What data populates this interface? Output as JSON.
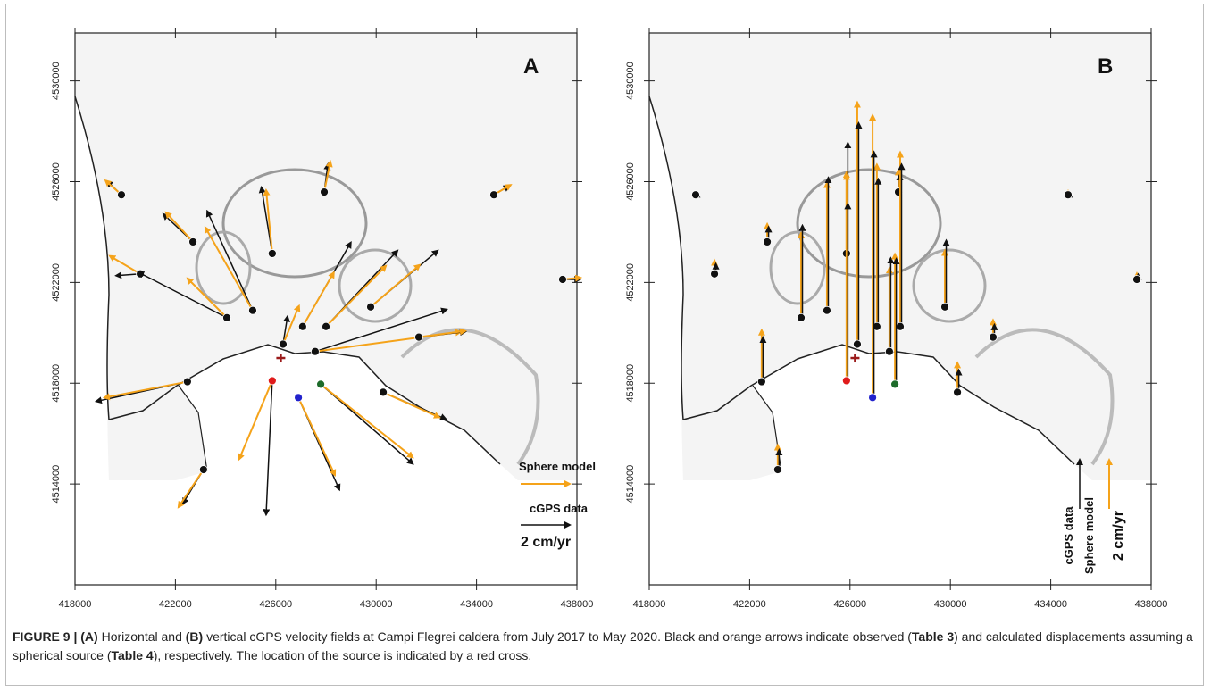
{
  "figure": {
    "panels": [
      {
        "label": "A",
        "mode": "horizontal",
        "legend": {
          "model": "Sphere model",
          "data": "cGPS data",
          "scale": "2 cm/yr"
        }
      },
      {
        "label": "B",
        "mode": "vertical",
        "legend": {
          "model": "Sphere model",
          "data": "cGPS data",
          "scale": "2 cm/yr"
        }
      }
    ],
    "scale_value": 2,
    "xlim": [
      418000,
      438000
    ],
    "ylim": [
      4510000,
      4531900
    ],
    "xticks": [
      418000,
      422000,
      426000,
      430000,
      434000,
      438000
    ],
    "yticks": [
      4514000,
      4518000,
      4522000,
      4526000,
      4530000
    ],
    "observed_color": "#111111",
    "model_color": "#f5a31a",
    "source": {
      "x": 426200,
      "y": 4519000,
      "color": "#9b1b1b"
    },
    "stations": [
      {
        "x": 419850,
        "y": 4525480,
        "obs_h": [
          -0.58,
          0.55
        ],
        "mod_h": [
          -0.65,
          0.58
        ],
        "obs_v": 0.1,
        "mod_v": 0.1,
        "color": "#111111"
      },
      {
        "x": 422700,
        "y": 4523610,
        "obs_h": [
          -1.2,
          1.13
        ],
        "mod_h": [
          -1.1,
          1.2
        ],
        "obs_v": 0.6,
        "mod_v": 0.73,
        "color": "#111111"
      },
      {
        "x": 420600,
        "y": 4522340,
        "obs_h": [
          -0.98,
          -0.07
        ],
        "mod_h": [
          -1.24,
          0.73
        ],
        "obs_v": 0.4,
        "mod_v": 0.55,
        "color": "#111111"
      },
      {
        "x": 424050,
        "y": 4520600,
        "obs_h": [
          -3.6,
          1.85
        ],
        "mod_h": [
          -1.6,
          1.6
        ],
        "obs_v": 3.75,
        "mod_v": 3.45,
        "color": "#111111"
      },
      {
        "x": 425080,
        "y": 4520890,
        "obs_h": [
          -1.85,
          4.04
        ],
        "mod_h": [
          -1.93,
          3.38
        ],
        "obs_v": 5.4,
        "mod_v": 5.2,
        "color": "#111111"
      },
      {
        "x": 425860,
        "y": 4523150,
        "obs_h": [
          -0.44,
          2.69
        ],
        "mod_h": [
          -0.25,
          2.58
        ],
        "obs_v": 4.5,
        "mod_v": 3.3,
        "color": "#111111"
      },
      {
        "x": 427930,
        "y": 4525590,
        "obs_h": [
          0.15,
          1.13
        ],
        "mod_h": [
          0.25,
          1.24
        ],
        "obs_v": 0.7,
        "mod_v": 0.9,
        "color": "#111111"
      },
      {
        "x": 434690,
        "y": 4525480,
        "obs_h": [
          0.62,
          0.36
        ],
        "mod_h": [
          0.69,
          0.4
        ],
        "obs_v": 0.1,
        "mod_v": 0.15,
        "color": "#111111"
      },
      {
        "x": 437430,
        "y": 4522120,
        "obs_h": [
          0.7,
          0
        ],
        "mod_h": [
          0.73,
          0.07
        ],
        "obs_v": 0.2,
        "mod_v": 0.25,
        "color": "#111111"
      },
      {
        "x": 426290,
        "y": 4519550,
        "obs_h": [
          0.18,
          1.13
        ],
        "mod_h": [
          0.65,
          1.56
        ],
        "obs_v": 9,
        "mod_v": 9.85,
        "color": "#111111"
      },
      {
        "x": 427070,
        "y": 4520250,
        "obs_h": [
          1.96,
          3.42
        ],
        "mod_h": [
          1.27,
          2.2
        ],
        "obs_v": 6,
        "mod_v": 6.6,
        "color": "#111111"
      },
      {
        "x": 428000,
        "y": 4520250,
        "obs_h": [
          2.91,
          3.09
        ],
        "mod_h": [
          2.44,
          2.47
        ],
        "obs_v": 6.6,
        "mod_v": 7.1,
        "color": "#111111"
      },
      {
        "x": 427570,
        "y": 4519260,
        "obs_h": [
          5.35,
          1.71
        ],
        "mod_h": [
          5.93,
          0.8
        ],
        "obs_v": 3.8,
        "mod_v": 3.4,
        "color": "#111111"
      },
      {
        "x": 429780,
        "y": 4521030,
        "obs_h": [
          2.73,
          2.29
        ],
        "mod_h": [
          2,
          1.71
        ],
        "obs_v": 2.7,
        "mod_v": 2.3,
        "color": "#111111"
      },
      {
        "x": 431700,
        "y": 4519830,
        "obs_h": [
          1.89,
          0.22
        ],
        "mod_h": [
          1.89,
          0.25
        ],
        "obs_v": 0.5,
        "mod_v": 0.7,
        "color": "#111111"
      },
      {
        "x": 430280,
        "y": 4517640,
        "obs_h": [
          2.55,
          -1.09
        ],
        "mod_h": [
          2.29,
          -1.02
        ],
        "obs_v": 0.9,
        "mod_v": 1.2,
        "color": "#111111"
      },
      {
        "x": 425860,
        "y": 4518100,
        "obs_h": [
          -0.25,
          -5.45
        ],
        "mod_h": [
          -1.35,
          -3.2
        ],
        "obs_v": 7.2,
        "mod_v": 8.4,
        "color": "#e01b1b"
      },
      {
        "x": 426900,
        "y": 4517430,
        "obs_h": [
          1.67,
          -3.75
        ],
        "mod_h": [
          1.49,
          -3.16
        ],
        "obs_v": 10,
        "mod_v": 11.5,
        "color": "#2222cc"
      },
      {
        "x": 427790,
        "y": 4517960,
        "obs_h": [
          3.75,
          -3.24
        ],
        "mod_h": [
          3.75,
          -2.98
        ],
        "obs_v": 5.1,
        "mod_v": 5.3,
        "color": "#1d6b2a"
      },
      {
        "x": 422480,
        "y": 4518060,
        "obs_h": [
          -3.71,
          -0.8
        ],
        "mod_h": [
          -3.38,
          -0.65
        ],
        "obs_v": 1.8,
        "mod_v": 2.1,
        "color": "#111111"
      },
      {
        "x": 423120,
        "y": 4514570,
        "obs_h": [
          -0.84,
          -1.38
        ],
        "mod_h": [
          -1.02,
          -1.53
        ],
        "obs_v": 0.8,
        "mod_v": 1,
        "color": "#111111"
      }
    ],
    "caption": [
      {
        "text": "FIGURE 9 | (A)",
        "bold": true
      },
      {
        "text": " Horizontal and ",
        "bold": false
      },
      {
        "text": "(B)",
        "bold": true
      },
      {
        "text": " vertical cGPS velocity fields at Campi Flegrei caldera from July 2017 to May 2020. Black and orange arrows indicate observed (",
        "bold": false
      },
      {
        "text": "Table 3",
        "bold": true
      },
      {
        "text": ") and calculated displacements assuming a spherical source (",
        "bold": false
      },
      {
        "text": "Table 4",
        "bold": true
      },
      {
        "text": "), respectively. The location of the source is indicated by a red cross.",
        "bold": false
      }
    ]
  }
}
